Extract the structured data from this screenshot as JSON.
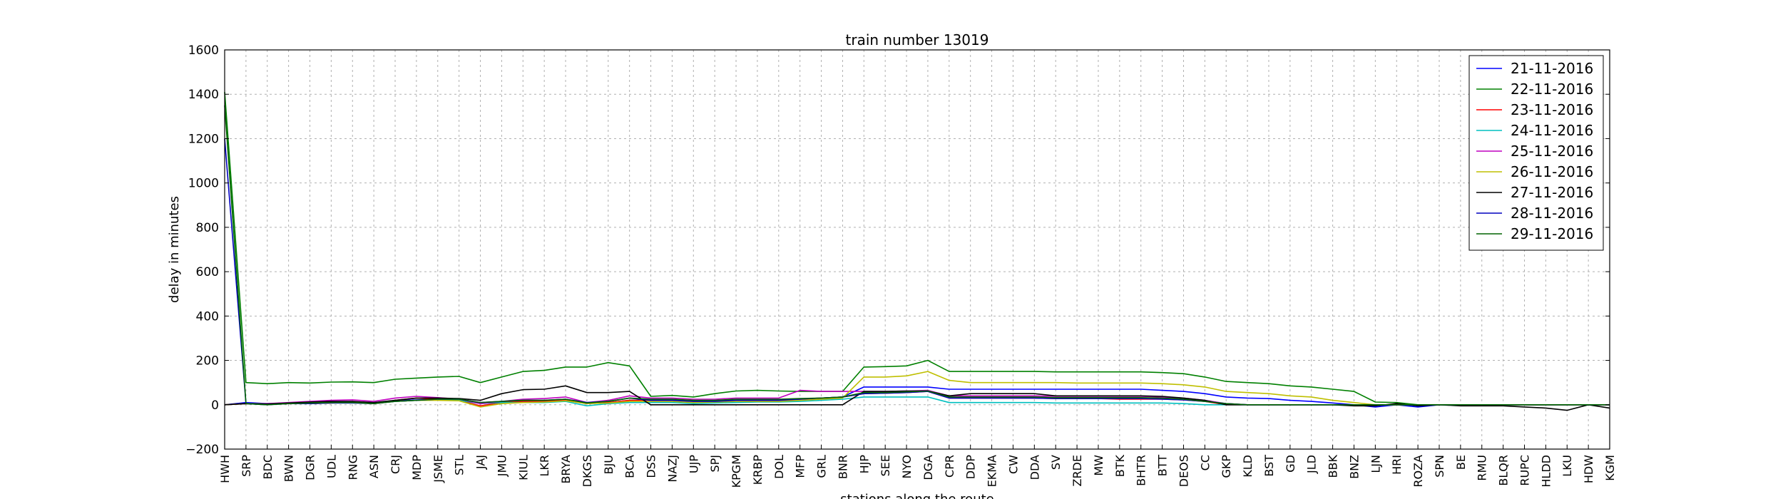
{
  "chart_data": {
    "type": "line",
    "title": "train number 13019",
    "xlabel": "stations along the route",
    "ylabel": "delay in minutes",
    "ylim": [
      -200,
      1600
    ],
    "yticks": [
      -200,
      0,
      200,
      400,
      600,
      800,
      1000,
      1200,
      1400,
      1600
    ],
    "ytick_labels": [
      "−200",
      "0",
      "200",
      "400",
      "600",
      "800",
      "1000",
      "1200",
      "1400",
      "1600"
    ],
    "grid": true,
    "legend_position": "top-right",
    "categories": [
      "HWH",
      "SRP",
      "BDC",
      "BWN",
      "DGR",
      "UDL",
      "RNG",
      "ASN",
      "CRJ",
      "MDP",
      "JSME",
      "STL",
      "JAJ",
      "JMU",
      "KIUL",
      "LKR",
      "BRYA",
      "DKGS",
      "BJU",
      "BCA",
      "DSS",
      "NAZJ",
      "UJP",
      "SPJ",
      "KPGM",
      "KRBP",
      "DOL",
      "MFP",
      "GRL",
      "BNR",
      "HJP",
      "SEE",
      "NYO",
      "DGA",
      "CPR",
      "DDP",
      "EKMA",
      "CW",
      "DDA",
      "SV",
      "ZRDE",
      "MW",
      "BTK",
      "BHTR",
      "BTT",
      "DEOS",
      "CC",
      "GKP",
      "KLD",
      "BST",
      "GD",
      "JLD",
      "BBK",
      "BNZ",
      "LJN",
      "HRI",
      "ROZA",
      "SPN",
      "BE",
      "RMU",
      "BLQR",
      "RUPC",
      "HLDD",
      "LKU",
      "HDW",
      "KGM"
    ],
    "series": [
      {
        "name": "21-11-2016",
        "color": "#0000ff",
        "values": [
          0,
          10,
          5,
          8,
          10,
          12,
          12,
          8,
          18,
          22,
          25,
          20,
          8,
          12,
          15,
          15,
          20,
          8,
          10,
          20,
          22,
          22,
          15,
          18,
          20,
          22,
          22,
          25,
          30,
          35,
          80,
          80,
          80,
          80,
          70,
          70,
          70,
          70,
          70,
          70,
          70,
          70,
          70,
          70,
          65,
          60,
          50,
          35,
          30,
          28,
          20,
          15,
          8,
          0,
          -10,
          0,
          -10,
          0,
          0,
          0,
          0,
          0,
          0,
          0,
          0,
          0
        ]
      },
      {
        "name": "22-11-2016",
        "color": "#008000",
        "values": [
          1410,
          100,
          95,
          100,
          98,
          102,
          103,
          100,
          115,
          120,
          125,
          128,
          100,
          125,
          150,
          155,
          170,
          170,
          190,
          175,
          38,
          42,
          35,
          50,
          62,
          65,
          62,
          60,
          60,
          60,
          170,
          172,
          175,
          200,
          150,
          150,
          150,
          150,
          150,
          148,
          148,
          148,
          148,
          148,
          145,
          140,
          125,
          105,
          100,
          95,
          85,
          80,
          70,
          60,
          12,
          10,
          0,
          0,
          0,
          0,
          0,
          0,
          0,
          0,
          0,
          0
        ]
      },
      {
        "name": "23-11-2016",
        "color": "#ff0000",
        "values": [
          0,
          5,
          3,
          5,
          5,
          8,
          10,
          5,
          20,
          30,
          25,
          20,
          -5,
          10,
          15,
          15,
          20,
          5,
          10,
          20,
          20,
          20,
          15,
          15,
          20,
          20,
          20,
          25,
          30,
          35,
          50,
          52,
          55,
          60,
          30,
          30,
          30,
          30,
          30,
          28,
          28,
          28,
          25,
          25,
          25,
          22,
          15,
          0,
          0,
          0,
          0,
          0,
          0,
          0,
          0,
          0,
          0,
          0,
          0,
          0,
          0,
          0,
          0,
          0,
          0,
          0
        ]
      },
      {
        "name": "24-11-2016",
        "color": "#00bfbf",
        "values": [
          0,
          5,
          5,
          8,
          10,
          10,
          12,
          8,
          15,
          20,
          22,
          20,
          5,
          10,
          10,
          10,
          15,
          -5,
          5,
          10,
          10,
          10,
          5,
          8,
          10,
          12,
          12,
          15,
          20,
          25,
          35,
          35,
          35,
          35,
          10,
          10,
          10,
          10,
          10,
          8,
          8,
          8,
          8,
          8,
          8,
          5,
          0,
          0,
          0,
          0,
          0,
          0,
          0,
          0,
          0,
          0,
          0,
          0,
          0,
          0,
          0,
          0,
          0,
          0,
          0,
          0
        ]
      },
      {
        "name": "25-11-2016",
        "color": "#bf00bf",
        "values": [
          0,
          5,
          5,
          10,
          15,
          20,
          22,
          15,
          30,
          38,
          32,
          25,
          5,
          15,
          25,
          28,
          35,
          10,
          20,
          40,
          30,
          30,
          25,
          25,
          30,
          30,
          30,
          65,
          60,
          60,
          60,
          60,
          62,
          65,
          40,
          40,
          40,
          40,
          40,
          38,
          38,
          38,
          38,
          38,
          35,
          30,
          20,
          5,
          0,
          0,
          0,
          0,
          0,
          0,
          0,
          0,
          0,
          0,
          0,
          0,
          0,
          0,
          0,
          0,
          0,
          0
        ]
      },
      {
        "name": "26-11-2016",
        "color": "#bfbf00",
        "values": [
          0,
          5,
          3,
          5,
          5,
          8,
          10,
          5,
          15,
          20,
          20,
          18,
          -10,
          5,
          10,
          12,
          18,
          5,
          8,
          15,
          15,
          15,
          10,
          12,
          15,
          15,
          15,
          20,
          25,
          30,
          125,
          125,
          130,
          150,
          110,
          100,
          100,
          100,
          100,
          100,
          98,
          98,
          98,
          98,
          95,
          90,
          80,
          60,
          55,
          50,
          40,
          35,
          20,
          10,
          0,
          0,
          0,
          0,
          0,
          0,
          0,
          0,
          0,
          0,
          0,
          0
        ]
      },
      {
        "name": "27-11-2016",
        "color": "#000000",
        "values": [
          0,
          5,
          3,
          8,
          12,
          15,
          15,
          10,
          20,
          30,
          30,
          28,
          20,
          50,
          68,
          70,
          85,
          55,
          55,
          60,
          0,
          0,
          0,
          0,
          0,
          0,
          0,
          0,
          0,
          0,
          60,
          60,
          62,
          62,
          40,
          50,
          50,
          50,
          50,
          40,
          40,
          40,
          40,
          40,
          38,
          30,
          20,
          0,
          0,
          0,
          0,
          0,
          0,
          -5,
          -5,
          5,
          -5,
          0,
          -5,
          -5,
          -5,
          -10,
          -15,
          -25,
          0,
          -15
        ]
      },
      {
        "name": "28-11-2016",
        "color": "#0000bf",
        "values": [
          1200,
          5,
          0,
          5,
          5,
          8,
          8,
          5,
          15,
          20,
          25,
          25,
          10,
          15,
          20,
          20,
          25,
          10,
          15,
          30,
          20,
          20,
          15,
          15,
          20,
          20,
          20,
          25,
          30,
          35,
          50,
          52,
          55,
          60,
          30,
          30,
          30,
          30,
          30,
          28,
          28,
          28,
          28,
          28,
          25,
          22,
          15,
          5,
          0,
          0,
          0,
          0,
          0,
          0,
          0,
          0,
          0,
          0,
          0,
          0,
          0,
          0,
          0,
          0,
          0,
          0
        ]
      },
      {
        "name": "29-11-2016",
        "color": "#006400",
        "values": [
          1350,
          5,
          0,
          5,
          8,
          10,
          10,
          5,
          15,
          20,
          25,
          25,
          10,
          15,
          20,
          20,
          25,
          8,
          15,
          30,
          25,
          25,
          20,
          20,
          25,
          25,
          25,
          28,
          30,
          35,
          55,
          55,
          58,
          62,
          35,
          35,
          35,
          35,
          35,
          32,
          32,
          32,
          32,
          32,
          30,
          25,
          15,
          5,
          0,
          0,
          0,
          0,
          0,
          0,
          0,
          0,
          0,
          0,
          0,
          0,
          0,
          0,
          0,
          0,
          0,
          0
        ]
      }
    ]
  }
}
